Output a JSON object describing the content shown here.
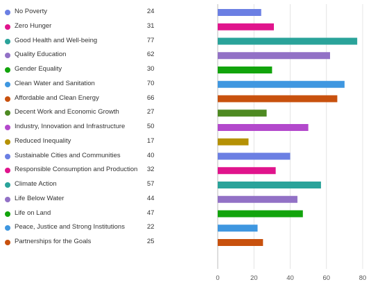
{
  "chart_data": {
    "type": "bar",
    "orientation": "horizontal",
    "categories": [
      "No Poverty",
      "Zero Hunger",
      "Good Health and Well-being",
      "Quality Education",
      "Gender Equality",
      "Clean Water and Sanitation",
      "Affordable and Clean Energy",
      "Decent Work and Economic Growth",
      "Industry, Innovation and Infrastructure",
      "Reduced Inequality",
      "Sustainable Cities and Communities",
      "Responsible Consumption and Production",
      "Climate Action",
      "Life Below Water",
      "Life on Land",
      "Peace, Justice and Strong Institutions",
      "Partnerships for the Goals"
    ],
    "values": [
      24,
      31,
      77,
      62,
      30,
      70,
      66,
      27,
      50,
      17,
      40,
      32,
      57,
      44,
      47,
      22,
      25
    ],
    "value_labels": [
      "24",
      "31",
      "77",
      "62",
      "30",
      "70",
      "66",
      "27",
      "50",
      "17",
      "40",
      "32",
      "57",
      "44",
      "47",
      "22",
      "25"
    ],
    "colors": [
      "#6b7fe3",
      "#e0148c",
      "#2aa39a",
      "#9271c6",
      "#12a40c",
      "#3f97e0",
      "#c8510e",
      "#4e8a22",
      "#b349cc",
      "#b59105",
      "#6b7fe3",
      "#e0148c",
      "#2aa39a",
      "#9271c6",
      "#12a40c",
      "#3f97e0",
      "#c8510e"
    ],
    "xlim": [
      0,
      80
    ],
    "xticks": [
      0,
      20,
      40,
      60,
      80
    ],
    "xtick_labels": [
      "0",
      "20",
      "40",
      "60",
      "80"
    ],
    "grid": true,
    "legend": "left"
  }
}
